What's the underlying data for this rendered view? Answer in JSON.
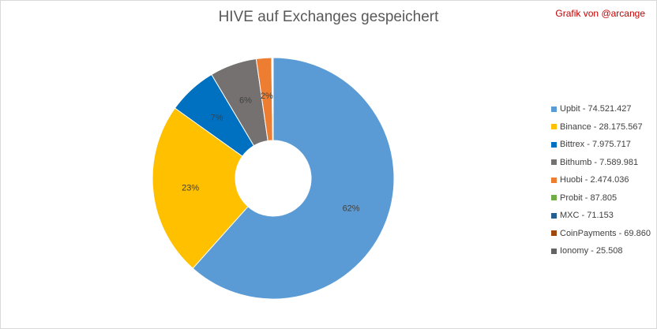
{
  "chart_data": {
    "type": "pie",
    "title": "HIVE auf Exchanges gespeichert",
    "credit": "Grafik von @arcange",
    "legend_position": "right",
    "slices": [
      {
        "label": "Upbit - 74.521.427",
        "value": 74521427,
        "percent_label": "62%",
        "color": "#5b9bd5"
      },
      {
        "label": "Binance - 28.175.567",
        "value": 28175567,
        "percent_label": "23%",
        "color": "#ffc000"
      },
      {
        "label": "Bittrex - 7.975.717",
        "value": 7975717,
        "percent_label": "7%",
        "color": "#0070c0"
      },
      {
        "label": "Bithumb - 7.589.981",
        "value": 7589981,
        "percent_label": "6%",
        "color": "#767171"
      },
      {
        "label": "Huobi - 2.474.036",
        "value": 2474036,
        "percent_label": "2%",
        "color": "#ed7d31"
      },
      {
        "label": "Probit - 87.805",
        "value": 87805,
        "percent_label": "",
        "color": "#70ad47"
      },
      {
        "label": "MXC - 71.153",
        "value": 71153,
        "percent_label": "",
        "color": "#255e91"
      },
      {
        "label": "CoinPayments - 69.860",
        "value": 69860,
        "percent_label": "",
        "color": "#9e480e"
      },
      {
        "label": "Ionomy - 25.508",
        "value": 25508,
        "percent_label": "",
        "color": "#636363"
      }
    ]
  }
}
